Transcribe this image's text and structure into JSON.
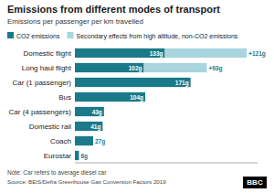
{
  "chart_data": {
    "type": "bar",
    "orientation": "horizontal",
    "stacked": true,
    "title": "Emissions from different modes of transport",
    "subtitle": "Emissions per passenger per km travelled",
    "categories": [
      "Eurostar",
      "Coach",
      "Domestic rail",
      "Car (4 passengers)",
      "Bus",
      "Car (1 passenger)",
      "Long haul flight",
      "Domestic flight"
    ],
    "series": [
      {
        "name": "CO2 emissions",
        "color": "#1a7a8a",
        "values": [
          6,
          27,
          41,
          43,
          104,
          171,
          102,
          133
        ],
        "value_labels": [
          "6g",
          "27g",
          "41g",
          "43g",
          "104g",
          "171g",
          "102g",
          "133g"
        ]
      },
      {
        "name": "Secondary effects from high altitude, non-CO2 emissions",
        "color": "#a8d5de",
        "values": [
          0,
          0,
          0,
          0,
          0,
          0,
          93,
          121
        ],
        "value_labels": [
          null,
          null,
          null,
          null,
          null,
          null,
          "+93g",
          "+121g"
        ]
      }
    ],
    "xlim": [
      0,
      270
    ],
    "data_labels": true,
    "tick_labels": "y",
    "grid": false,
    "annotations": [
      "Note: Car refers to average diesel car",
      "Source: BEIS/Defra Greenhouse Gas Conversion Factors 2019",
      "BBC"
    ]
  }
}
